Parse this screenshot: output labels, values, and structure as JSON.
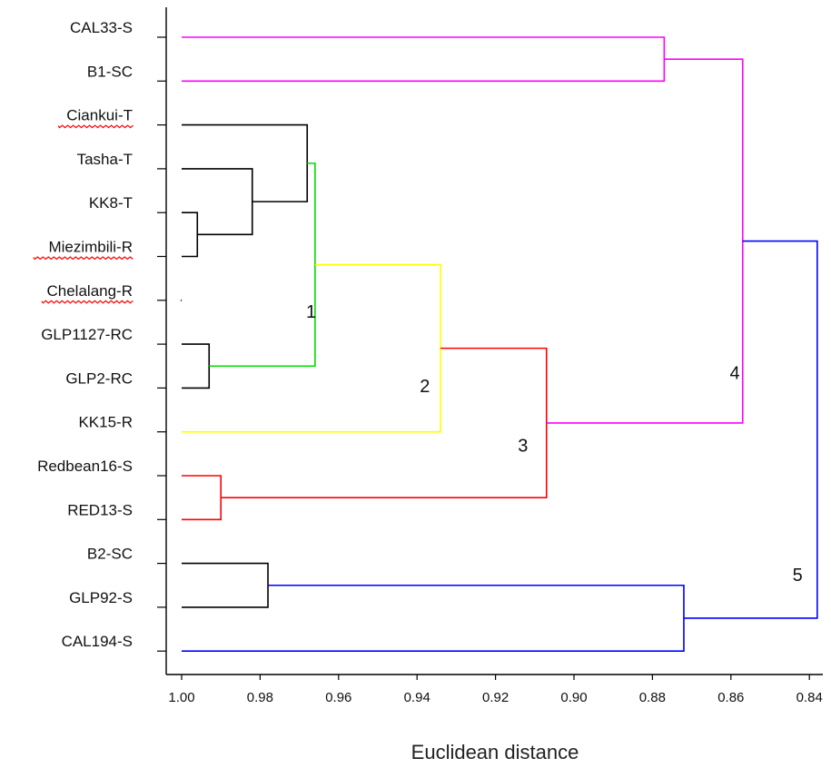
{
  "chart_data": {
    "type": "dendrogram",
    "xlabel": "Euclidean distance",
    "xlim": [
      1.0,
      0.837
    ],
    "x_ticks": [
      "1.00",
      "0.98",
      "0.96",
      "0.94",
      "0.92",
      "0.90",
      "0.88",
      "0.86",
      "0.84"
    ],
    "x_tick_values": [
      1.0,
      0.98,
      0.96,
      0.94,
      0.92,
      0.9,
      0.88,
      0.86,
      0.84
    ],
    "leaves": [
      "CAL33-S",
      "B1-SC",
      "Ciankui-T",
      "Tasha-T",
      "KK8-T",
      "Miezimbili-R",
      "Chelalang-R",
      "GLP1127-RC",
      "GLP2-RC",
      "KK15-R",
      "Redbean16-S",
      "RED13-S",
      "B2-SC",
      "GLP92-S",
      "CAL194-S"
    ],
    "spellcheck_underlined": [
      "Ciankui-T",
      "Miezimbili-R",
      "Chelalang-R"
    ],
    "merges": [
      {
        "left": "CAL33-S",
        "right": "B1-SC",
        "height": 0.877,
        "color": "#ff00ff"
      },
      {
        "left": "KK8-T",
        "right": "Miezimbili-R",
        "height": 0.996,
        "color": "#000000"
      },
      {
        "left": "Tasha-T",
        "right": "KK8-T+Miezimbili-R",
        "height": 0.982,
        "color": "#000000"
      },
      {
        "left": "Ciankui-T",
        "right": "Tasha-T+KK8-T+Miezimbili-R",
        "height": 0.968,
        "color": "#000000"
      },
      {
        "left": "GLP1127-RC",
        "right": "GLP2-RC",
        "height": 0.993,
        "color": "#000000"
      },
      {
        "left": "Ciankui-T group",
        "right": "GLP1127-RC+GLP2-RC",
        "height": 0.966,
        "color": "#00dd00"
      },
      {
        "left": "cluster 1",
        "right": "KK15-R",
        "height": 0.934,
        "color": "#ffff00"
      },
      {
        "left": "Redbean16-S",
        "right": "RED13-S",
        "height": 0.99,
        "color": "#ff0000"
      },
      {
        "left": "cluster 2",
        "right": "Redbean16-S+RED13-S",
        "height": 0.907,
        "color": "#ff0000"
      },
      {
        "left": "CAL33-S+B1-SC",
        "right": "cluster 3",
        "height": 0.857,
        "color": "#ff00ff"
      },
      {
        "left": "B2-SC",
        "right": "GLP92-S",
        "height": 0.978,
        "color": "#000000"
      },
      {
        "left": "B2-SC+GLP92-S",
        "right": "CAL194-S",
        "height": 0.872,
        "color": "#0000ff"
      },
      {
        "left": "cluster 4",
        "right": "B2-SC+GLP92-S+CAL194-S",
        "height": 0.838,
        "color": "#0000ff"
      }
    ],
    "cluster_labels": [
      {
        "text": "1",
        "x": 0.967,
        "leaf_pos": 6.4
      },
      {
        "text": "2",
        "x": 0.938,
        "leaf_pos": 8.1
      },
      {
        "text": "3",
        "x": 0.913,
        "leaf_pos": 9.45
      },
      {
        "text": "4",
        "x": 0.859,
        "leaf_pos": 7.8
      },
      {
        "text": "5",
        "x": 0.843,
        "leaf_pos": 12.4
      }
    ]
  }
}
